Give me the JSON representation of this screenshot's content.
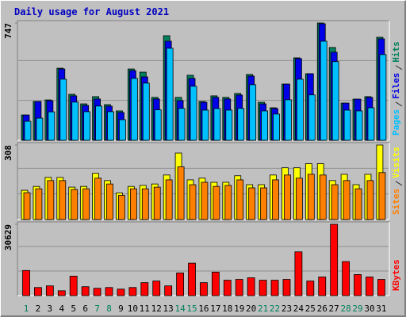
{
  "title": "Daily usage for August 2021",
  "chart_data": [
    {
      "type": "bar",
      "ylim": [
        0,
        747
      ],
      "yticks": [
        747
      ],
      "series": [
        {
          "name": "Hits",
          "color": "#00805c",
          "values": [
            161,
            247,
            257,
            459,
            293,
            232,
            278,
            227,
            187,
            454,
            434,
            273,
            666,
            273,
            414,
            247,
            283,
            273,
            298,
            419,
            242,
            207,
            358,
            525,
            424,
            747,
            591,
            237,
            262,
            278,
            656
          ]
        },
        {
          "name": "Files",
          "color": "#0000e6",
          "values": [
            161,
            247,
            252,
            454,
            283,
            222,
            263,
            217,
            177,
            444,
            404,
            263,
            631,
            253,
            394,
            242,
            273,
            263,
            288,
            409,
            232,
            202,
            358,
            520,
            424,
            742,
            561,
            237,
            262,
            273,
            646
          ]
        },
        {
          "name": "Pages",
          "color": "#00c0ff",
          "values": [
            121,
            141,
            181,
            389,
            243,
            182,
            218,
            182,
            131,
            394,
            364,
            194,
            586,
            203,
            344,
            192,
            202,
            192,
            203,
            354,
            187,
            167,
            258,
            389,
            289,
            631,
            501,
            192,
            187,
            207,
            546
          ]
        }
      ]
    },
    {
      "type": "bar",
      "ylim": [
        0,
        308
      ],
      "yticks": [
        308
      ],
      "series": [
        {
          "name": "Visits",
          "color": "#ffff00",
          "values": [
            121,
            137,
            174,
            174,
            134,
            137,
            191,
            161,
            110,
            137,
            141,
            147,
            184,
            275,
            164,
            171,
            154,
            154,
            181,
            144,
            144,
            184,
            214,
            214,
            231,
            231,
            161,
            187,
            144,
            187,
            308
          ]
        },
        {
          "name": "Sites",
          "color": "#ff8000",
          "values": [
            111,
            127,
            161,
            161,
            124,
            127,
            171,
            147,
            100,
            127,
            127,
            134,
            164,
            218,
            144,
            154,
            137,
            141,
            164,
            131,
            131,
            164,
            184,
            171,
            187,
            184,
            144,
            161,
            127,
            161,
            194
          ]
        }
      ]
    },
    {
      "type": "bar",
      "ylim": [
        0,
        30629
      ],
      "yticks": [
        30629
      ],
      "categories": [
        "1",
        "2",
        "3",
        "4",
        "5",
        "6",
        "7",
        "8",
        "9",
        "10",
        "11",
        "12",
        "13",
        "14",
        "15",
        "16",
        "17",
        "18",
        "19",
        "20",
        "21",
        "22",
        "23",
        "24",
        "25",
        "26",
        "27",
        "28",
        "29",
        "30",
        "31"
      ],
      "category_colors": [
        "#00805c",
        "#000000",
        "#000000",
        "#000000",
        "#000000",
        "#000000",
        "#00805c",
        "#00805c",
        "#000000",
        "#000000",
        "#000000",
        "#000000",
        "#000000",
        "#00805c",
        "#00805c",
        "#000000",
        "#000000",
        "#000000",
        "#000000",
        "#000000",
        "#00805c",
        "#00805c",
        "#000000",
        "#000000",
        "#000000",
        "#000000",
        "#000000",
        "#00805c",
        "#00805c",
        "#000000",
        "#000000"
      ],
      "series": [
        {
          "name": "KBytes",
          "color": "#ff0000",
          "values": [
            10790,
            3481,
            4177,
            2088,
            8353,
            3829,
            3132,
            3481,
            2784,
            3481,
            5569,
            6265,
            4177,
            9746,
            13922,
            5569,
            10094,
            6613,
            6961,
            7657,
            6613,
            6613,
            6961,
            18795,
            6265,
            8005,
            30629,
            14618,
            9049,
            8005,
            6961
          ]
        }
      ]
    }
  ]
}
